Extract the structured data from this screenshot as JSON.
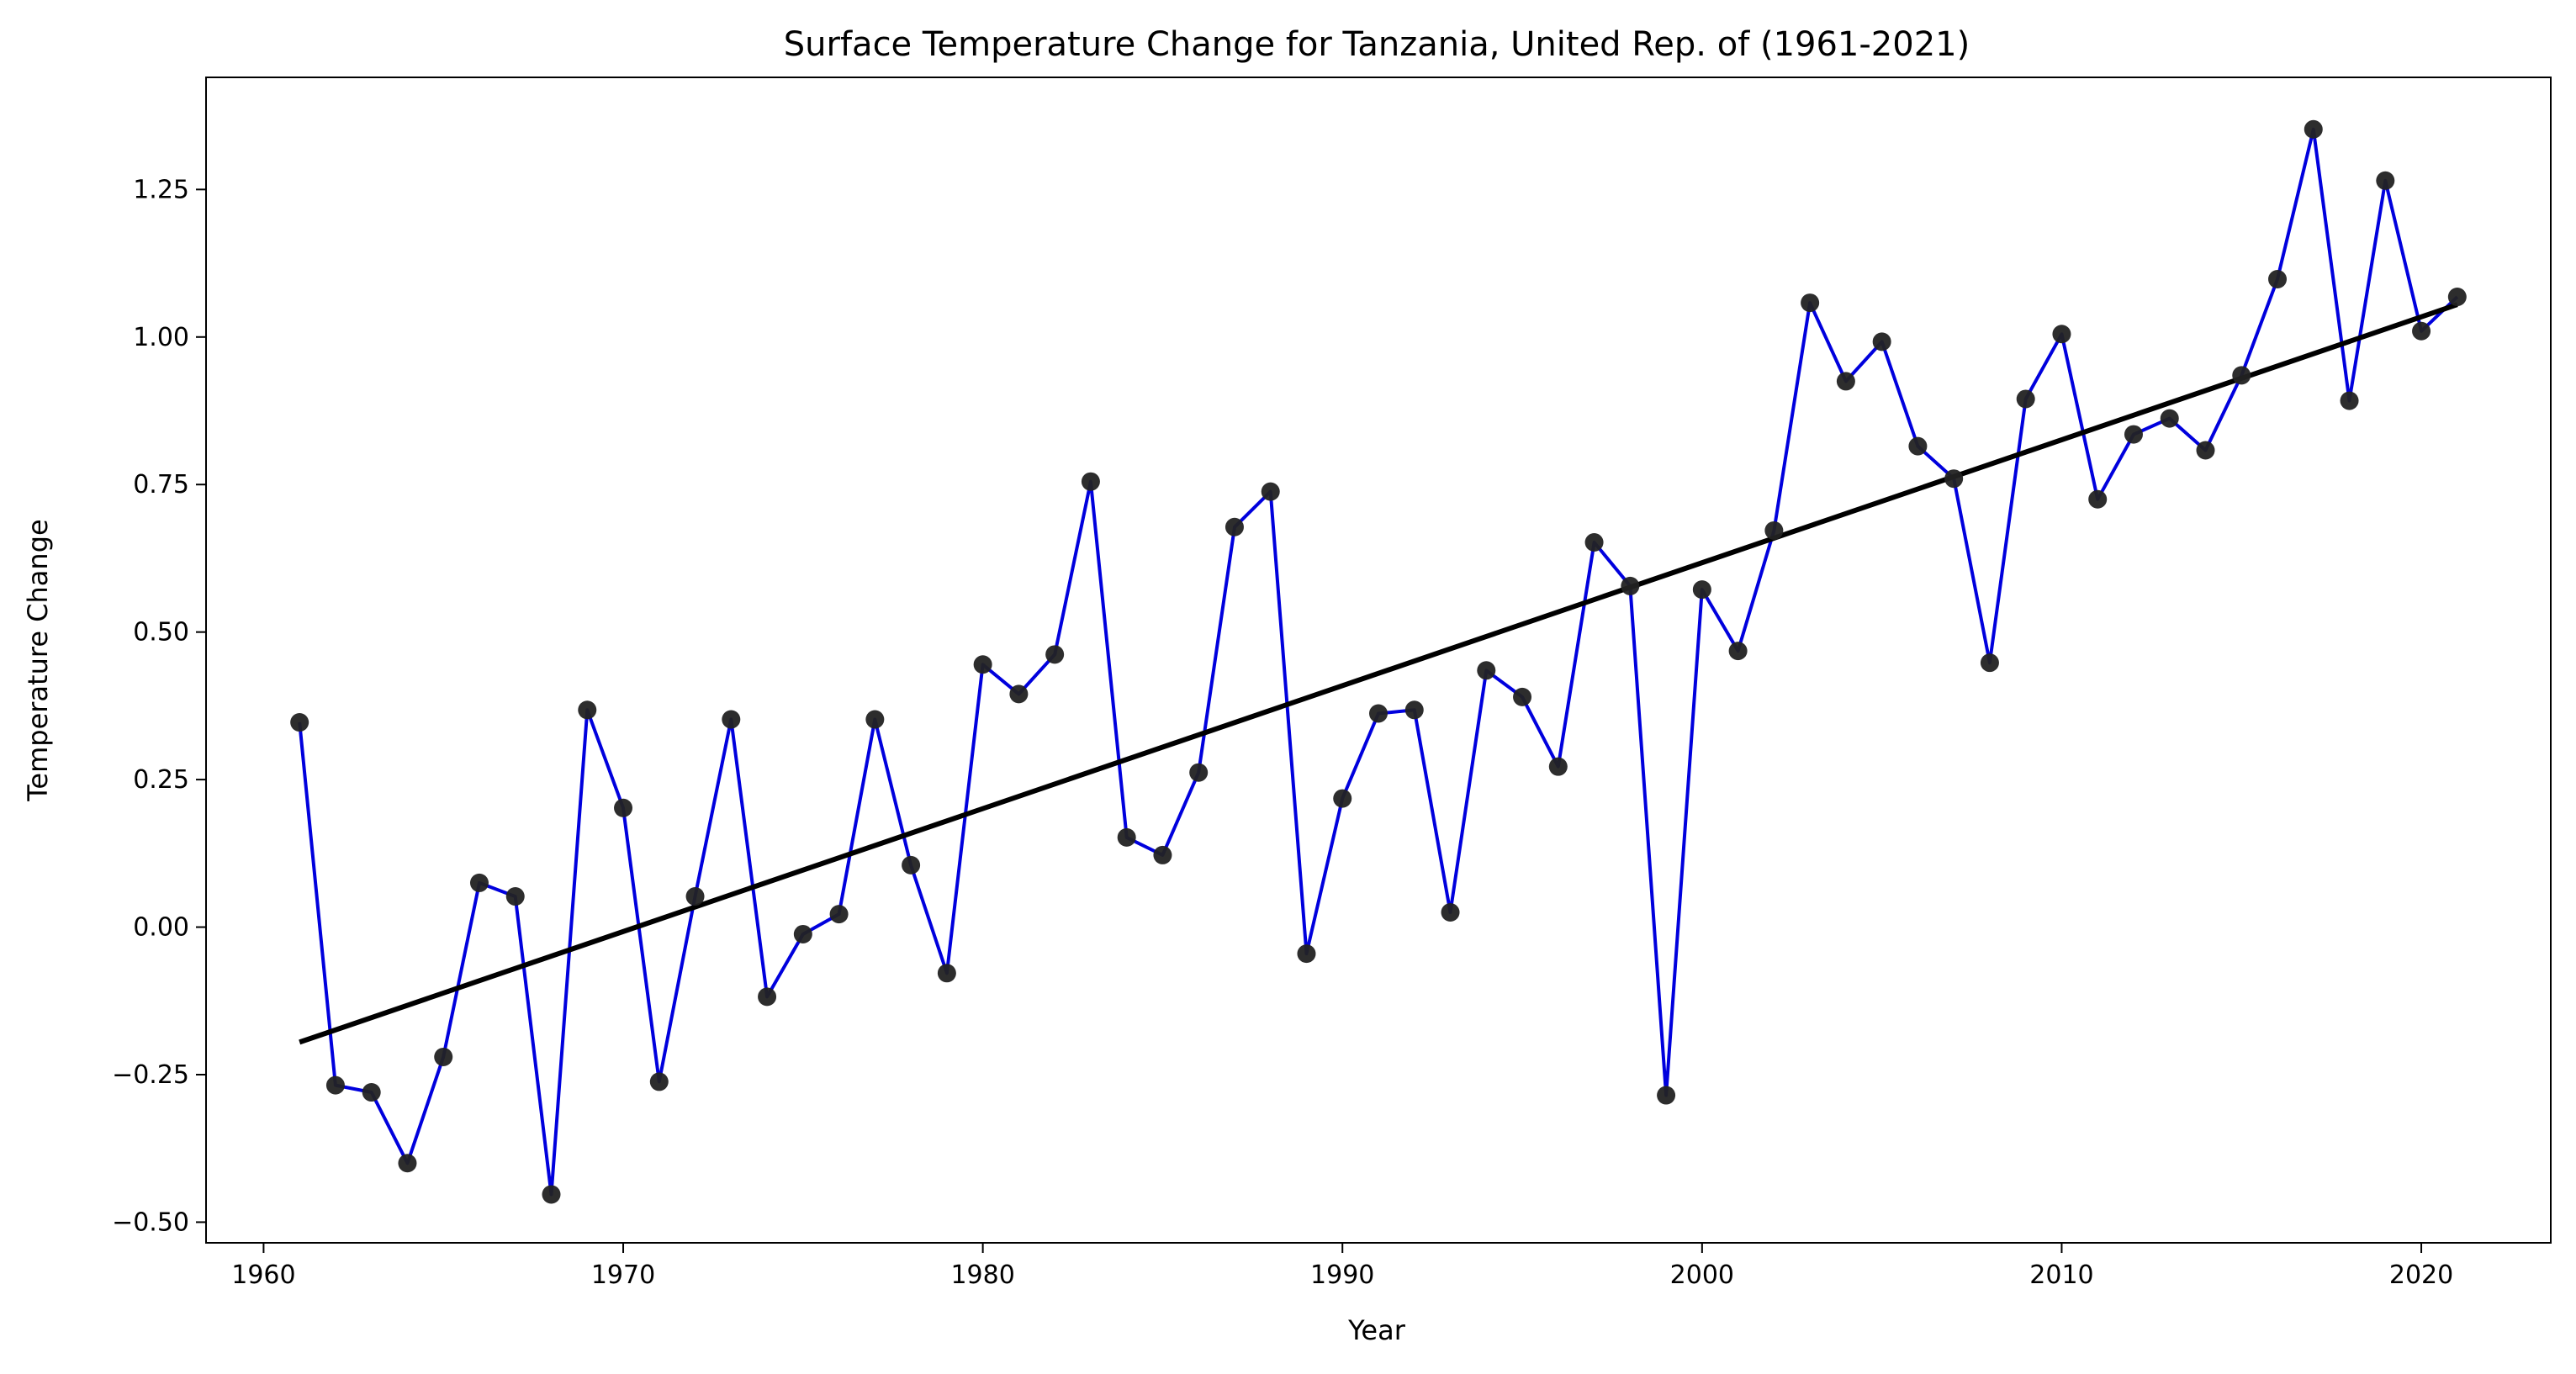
{
  "chart_data": {
    "type": "line",
    "title": "Surface Temperature Change for Tanzania, United Rep. of (1961-2021)",
    "xlabel": "Year",
    "ylabel": "Temperature Change",
    "xlim": [
      1958.4,
      2023.6
    ],
    "ylim": [
      -0.535,
      1.44
    ],
    "xticks": [
      1960,
      1970,
      1980,
      1990,
      2000,
      2010,
      2020
    ],
    "yticks": [
      -0.5,
      -0.25,
      0.0,
      0.25,
      0.5,
      0.75,
      1.0,
      1.25
    ],
    "ytick_labels": [
      "−0.50",
      "−0.25",
      "0.00",
      "0.25",
      "0.50",
      "0.75",
      "1.00",
      "1.25"
    ],
    "grid": false,
    "legend": "none",
    "series": [
      {
        "style": "blue line with dark circular markers",
        "color": "#0000dd",
        "marker_color": "#222222",
        "x": [
          1961,
          1962,
          1963,
          1964,
          1965,
          1966,
          1967,
          1968,
          1969,
          1970,
          1971,
          1972,
          1973,
          1974,
          1975,
          1976,
          1977,
          1978,
          1979,
          1980,
          1981,
          1982,
          1983,
          1984,
          1985,
          1986,
          1987,
          1988,
          1989,
          1990,
          1991,
          1992,
          1993,
          1994,
          1995,
          1996,
          1997,
          1998,
          1999,
          2000,
          2001,
          2002,
          2003,
          2004,
          2005,
          2006,
          2007,
          2008,
          2009,
          2010,
          2011,
          2012,
          2013,
          2014,
          2015,
          2016,
          2017,
          2018,
          2019,
          2020,
          2021
        ],
        "values": [
          0.347,
          -0.268,
          -0.28,
          -0.4,
          -0.22,
          0.075,
          0.052,
          -0.453,
          0.368,
          0.202,
          -0.262,
          0.052,
          0.352,
          -0.118,
          -0.012,
          0.022,
          0.352,
          0.105,
          -0.078,
          0.445,
          0.395,
          0.462,
          0.755,
          0.152,
          0.122,
          0.262,
          0.678,
          0.738,
          -0.045,
          0.218,
          0.362,
          0.368,
          0.025,
          0.435,
          0.39,
          0.272,
          0.652,
          0.578,
          -0.285,
          0.572,
          0.468,
          0.672,
          1.058,
          0.925,
          0.992,
          0.815,
          0.76,
          0.448,
          0.895,
          1.005,
          0.725,
          0.835,
          0.862,
          0.808,
          0.935,
          1.098,
          1.352,
          0.892,
          1.265,
          1.01,
          1.068
        ]
      },
      {
        "style": "black linear trend line",
        "color": "#000000",
        "x": [
          1961,
          2021
        ],
        "values": [
          -0.195,
          1.055
        ]
      }
    ]
  }
}
